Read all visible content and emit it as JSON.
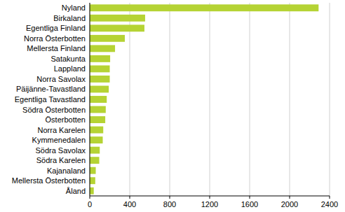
{
  "chart_data": {
    "type": "bar",
    "orientation": "horizontal",
    "categories": [
      "Nyland",
      "Birkaland",
      "Egentliga Finland",
      "Norra Österbotten",
      "Mellersta Finland",
      "Satakunta",
      "Lappland",
      "Norra Savolax",
      "Päijänne-Tavastland",
      "Egentliga Tavastland",
      "Södra Österbotten",
      "Österbotten",
      "Norra Karelen",
      "Kymmenedalen",
      "Södra Savolax",
      "Södra Karelen",
      "Kajanaland",
      "Mellersta Österbotten",
      "Åland"
    ],
    "values": [
      2290,
      554,
      547,
      351,
      253,
      204,
      200,
      200,
      190,
      170,
      160,
      155,
      135,
      130,
      100,
      95,
      60,
      55,
      40
    ],
    "color": "#b5d334",
    "xlim": [
      0,
      2400
    ],
    "xticks": [
      0,
      400,
      800,
      1200,
      1600,
      2000,
      2400
    ],
    "grid": true
  }
}
